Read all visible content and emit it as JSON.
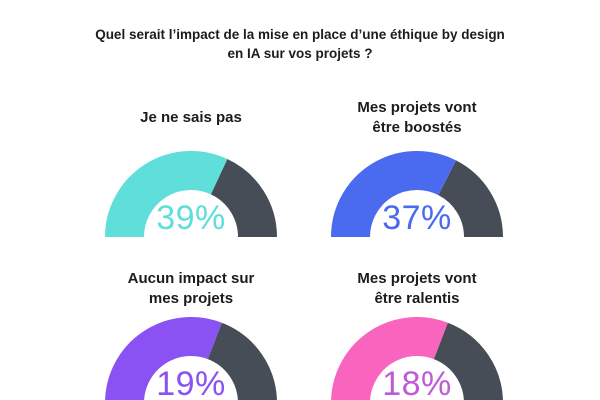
{
  "title": {
    "text": "Quel serait l’impact de la mise en place d’une éthique by design en IA sur vos projets ?",
    "lines": [
      "Quel serait l’impact de la mise en place d’une éthique by design",
      "en IA sur vos projets ?"
    ],
    "color": "#1b1c1e"
  },
  "chart_data": {
    "type": "pie",
    "subtype": "semi-donut-gauge-grid",
    "title": "Quel serait l’impact de la mise en place d’une éthique by design en IA sur vos projets ?",
    "unit": "%",
    "legend_position": "none",
    "remainder_color": "#464d57",
    "hole_color": "#ffffff",
    "items": [
      {
        "label": "Je ne sais pas",
        "label_lines": [
          "Je ne sais pas",
          ""
        ],
        "value": 39,
        "display": "39%",
        "arc_color": "#5fdeda",
        "value_color": "#5fdeda",
        "arc_deg": 115
      },
      {
        "label": "Mes projets vont être boostés",
        "label_lines": [
          "Mes projets vont",
          "être boostés"
        ],
        "value": 37,
        "display": "37%",
        "arc_color": "#4a6aef",
        "value_color": "#4a6aef",
        "arc_deg": 117
      },
      {
        "label": "Aucun impact sur mes projets",
        "label_lines": [
          "Aucun impact sur",
          "mes projets"
        ],
        "value": 19,
        "display": "19%",
        "arc_color": "#8a51f3",
        "value_color": "#8a51f3",
        "arc_deg": 111
      },
      {
        "label": "Mes projets vont être ralentis",
        "label_lines": [
          "Mes projets vont",
          "être ralentis"
        ],
        "value": 18,
        "display": "18%",
        "arc_color": "#f964be",
        "value_color": "#bd5bd9",
        "arc_deg": 111
      }
    ]
  }
}
